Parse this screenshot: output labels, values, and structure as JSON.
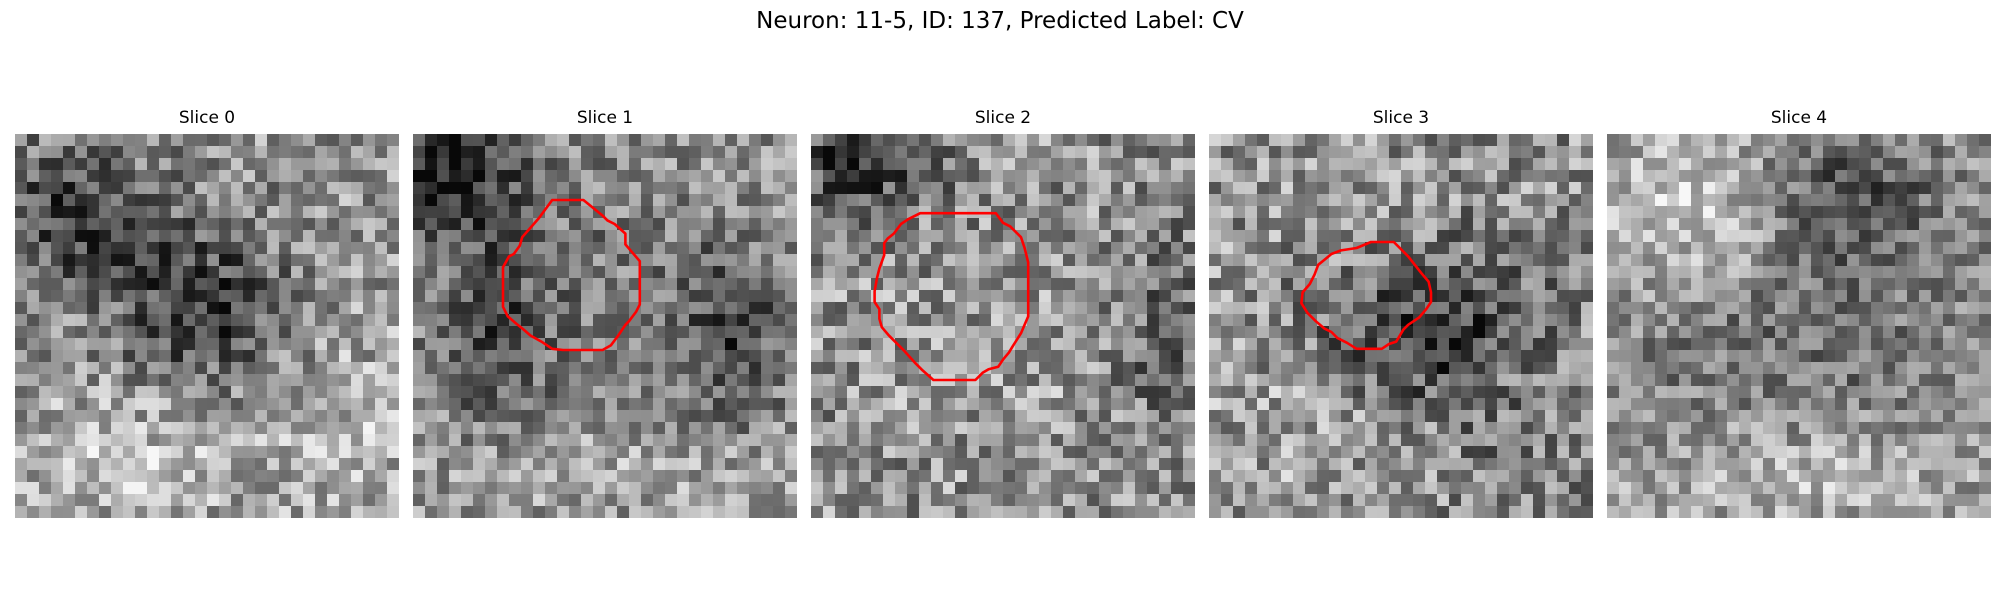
{
  "figure": {
    "title": "Neuron: 11-5, ID: 137, Predicted Label: CV"
  },
  "colors": {
    "contour": "#ff0000",
    "background": "#ffffff"
  },
  "image_grid": {
    "rows": 32,
    "cols": 32,
    "colormap": "gray"
  },
  "slices": [
    {
      "title": "Slice 0",
      "has_contour": false
    },
    {
      "title": "Slice 1",
      "has_contour": true
    },
    {
      "title": "Slice 2",
      "has_contour": true
    },
    {
      "title": "Slice 3",
      "has_contour": true
    },
    {
      "title": "Slice 4",
      "has_contour": false
    }
  ]
}
